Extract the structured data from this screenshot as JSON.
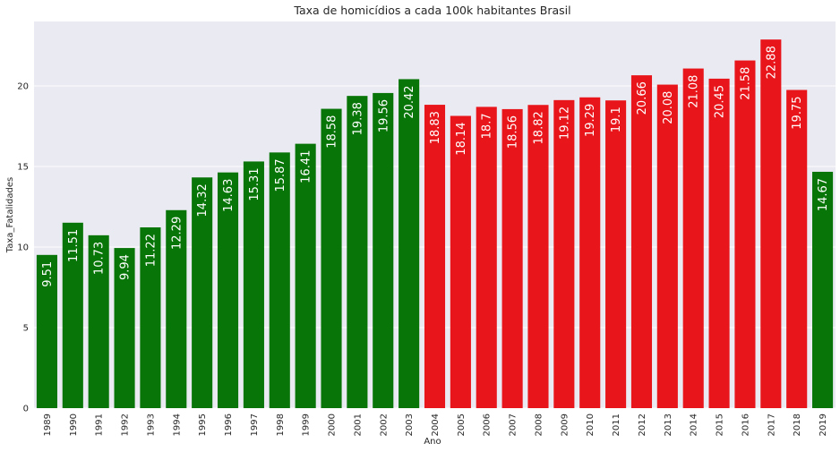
{
  "chart_data": {
    "type": "bar",
    "title": "Taxa de homicídios a cada 100k habitantes Brasil",
    "xlabel": "Ano",
    "ylabel": "Taxa_Fatalidades",
    "ylim": [
      0,
      24
    ],
    "yticks": [
      0,
      5,
      10,
      15,
      20
    ],
    "grid": true,
    "legend": "none",
    "background_color": "#eaeaf2",
    "grid_color": "#ffffff",
    "colors": {
      "green": "#087508",
      "red": "#e8151a"
    },
    "categories": [
      "1989",
      "1990",
      "1991",
      "1992",
      "1993",
      "1994",
      "1995",
      "1996",
      "1997",
      "1998",
      "1999",
      "2000",
      "2001",
      "2002",
      "2003",
      "2004",
      "2005",
      "2006",
      "2007",
      "2008",
      "2009",
      "2010",
      "2011",
      "2012",
      "2013",
      "2014",
      "2015",
      "2016",
      "2017",
      "2018",
      "2019"
    ],
    "values": [
      9.51,
      11.51,
      10.73,
      9.94,
      11.22,
      12.29,
      14.32,
      14.63,
      15.31,
      15.87,
      16.41,
      18.58,
      19.38,
      19.56,
      20.42,
      18.83,
      18.14,
      18.7,
      18.56,
      18.82,
      19.12,
      19.29,
      19.1,
      20.66,
      20.08,
      21.08,
      20.45,
      21.58,
      22.88,
      19.75,
      14.67
    ],
    "data_labels": [
      "9.51",
      "11.51",
      "10.73",
      "9.94",
      "11.22",
      "12.29",
      "14.32",
      "14.63",
      "15.31",
      "15.87",
      "16.41",
      "18.58",
      "19.38",
      "19.56",
      "20.42",
      "18.83",
      "18.14",
      "18.7",
      "18.56",
      "18.82",
      "19.12",
      "19.29",
      "19.1",
      "20.66",
      "20.08",
      "21.08",
      "20.45",
      "21.58",
      "22.88",
      "19.75",
      "14.67"
    ],
    "bar_colors": [
      "green",
      "green",
      "green",
      "green",
      "green",
      "green",
      "green",
      "green",
      "green",
      "green",
      "green",
      "green",
      "green",
      "green",
      "green",
      "red",
      "red",
      "red",
      "red",
      "red",
      "red",
      "red",
      "red",
      "red",
      "red",
      "red",
      "red",
      "red",
      "red",
      "red",
      "green"
    ]
  }
}
